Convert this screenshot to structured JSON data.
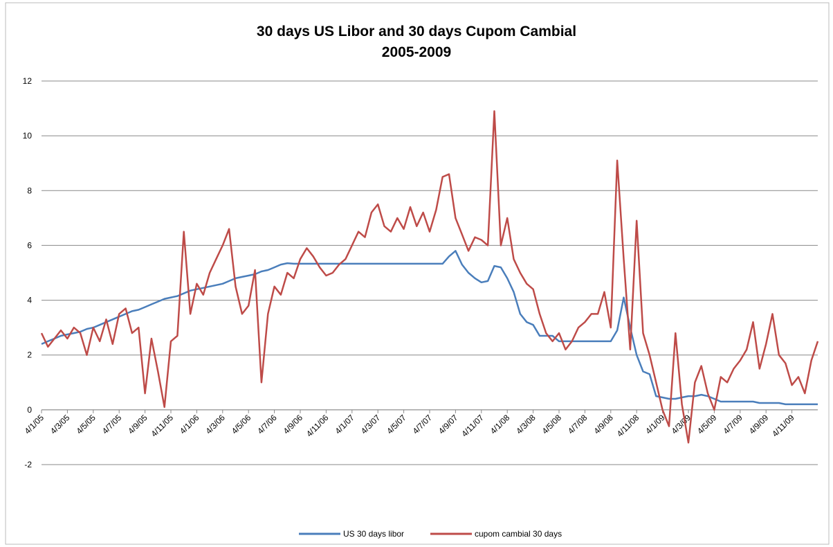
{
  "chart_data": {
    "type": "line",
    "title": [
      "30 days US Libor and 30 days Cupom Cambial",
      "2005-2009"
    ],
    "categories": [
      "4/1/05",
      null,
      null,
      null,
      "4/3/05",
      null,
      null,
      null,
      "4/5/05",
      null,
      null,
      null,
      "4/7/05",
      null,
      null,
      null,
      "4/9/05",
      null,
      null,
      null,
      "4/11/05",
      null,
      null,
      null,
      "4/1/06",
      null,
      null,
      null,
      "4/3/06",
      null,
      null,
      null,
      "4/5/06",
      null,
      null,
      null,
      "4/7/06",
      null,
      null,
      null,
      "4/9/06",
      null,
      null,
      null,
      "4/11/06",
      null,
      null,
      null,
      "4/1/07",
      null,
      null,
      null,
      "4/3/07",
      null,
      null,
      null,
      "4/5/07",
      null,
      null,
      null,
      "4/7/07",
      null,
      null,
      null,
      "4/9/07",
      null,
      null,
      null,
      "4/11/07",
      null,
      null,
      null,
      "4/1/08",
      null,
      null,
      null,
      "4/3/08",
      null,
      null,
      null,
      "4/5/08",
      null,
      null,
      null,
      "4/7/08",
      null,
      null,
      null,
      "4/9/08",
      null,
      null,
      null,
      "4/11/08",
      null,
      null,
      null,
      "4/1/09",
      null,
      null,
      null,
      "4/3/09",
      null,
      null,
      null,
      "4/5/09",
      null,
      null,
      null,
      "4/7/09",
      null,
      null,
      null,
      "4/9/09",
      null,
      null,
      null,
      "4/11/09",
      null,
      null,
      null,
      null
    ],
    "series": [
      {
        "name": "US 30 days libor",
        "color": "#4a7ebb",
        "values": [
          2.4,
          2.5,
          2.6,
          2.7,
          2.75,
          2.8,
          2.85,
          2.95,
          3.0,
          3.1,
          3.2,
          3.3,
          3.4,
          3.5,
          3.6,
          3.65,
          3.75,
          3.85,
          3.95,
          4.05,
          4.1,
          4.15,
          4.25,
          4.35,
          4.4,
          4.45,
          4.5,
          4.55,
          4.6,
          4.7,
          4.8,
          4.85,
          4.9,
          4.95,
          5.05,
          5.1,
          5.2,
          5.3,
          5.35,
          5.33,
          5.33,
          5.33,
          5.33,
          5.33,
          5.33,
          5.33,
          5.33,
          5.33,
          5.33,
          5.33,
          5.33,
          5.33,
          5.33,
          5.33,
          5.33,
          5.33,
          5.33,
          5.33,
          5.33,
          5.33,
          5.33,
          5.33,
          5.33,
          5.6,
          5.8,
          5.3,
          5.0,
          4.8,
          4.65,
          4.7,
          5.25,
          5.2,
          4.8,
          4.3,
          3.5,
          3.2,
          3.1,
          2.7,
          2.7,
          2.7,
          2.5,
          2.5,
          2.5,
          2.5,
          2.5,
          2.5,
          2.5,
          2.5,
          2.5,
          2.9,
          4.1,
          3.0,
          2.0,
          1.4,
          1.3,
          0.5,
          0.45,
          0.4,
          0.4,
          0.45,
          0.5,
          0.5,
          0.55,
          0.5,
          0.4,
          0.3,
          0.3,
          0.3,
          0.3,
          0.3,
          0.3,
          0.25,
          0.25,
          0.25,
          0.25,
          0.2,
          0.2,
          0.2,
          0.2,
          0.2,
          0.2
        ]
      },
      {
        "name": "cupom cambial 30 days",
        "color": "#be4b48",
        "values": [
          2.8,
          2.3,
          2.6,
          2.9,
          2.6,
          3.0,
          2.8,
          2.0,
          3.0,
          2.5,
          3.3,
          2.4,
          3.5,
          3.7,
          2.8,
          3.0,
          0.6,
          2.6,
          1.4,
          0.1,
          2.5,
          2.7,
          6.5,
          3.5,
          4.6,
          4.2,
          5.0,
          5.5,
          6.0,
          6.6,
          4.5,
          3.5,
          3.8,
          5.1,
          1.0,
          3.5,
          4.5,
          4.2,
          5.0,
          4.8,
          5.5,
          5.9,
          5.6,
          5.2,
          4.9,
          5.0,
          5.3,
          5.5,
          6.0,
          6.5,
          6.3,
          7.2,
          7.5,
          6.7,
          6.5,
          7.0,
          6.6,
          7.4,
          6.7,
          7.2,
          6.5,
          7.3,
          8.5,
          8.6,
          7.0,
          6.4,
          5.8,
          6.3,
          6.2,
          6.0,
          10.9,
          6.0,
          7.0,
          5.5,
          5.0,
          4.6,
          4.4,
          3.5,
          2.8,
          2.5,
          2.8,
          2.2,
          2.5,
          3.0,
          3.2,
          3.5,
          3.5,
          4.3,
          3.0,
          9.1,
          5.5,
          2.2,
          6.9,
          2.8,
          2.0,
          1.0,
          0.0,
          -0.6,
          2.8,
          0.2,
          -1.2,
          1.0,
          1.6,
          0.6,
          0.0,
          1.2,
          1.0,
          1.5,
          1.8,
          2.2,
          3.2,
          1.5,
          2.4,
          3.5,
          2.0,
          1.7,
          0.9,
          1.2,
          0.6,
          1.8,
          2.5
        ]
      }
    ],
    "ylim": [
      -2,
      12
    ],
    "yticks": [
      -2,
      0,
      2,
      4,
      6,
      8,
      10,
      12
    ],
    "grid": true,
    "legend": "bottom"
  }
}
